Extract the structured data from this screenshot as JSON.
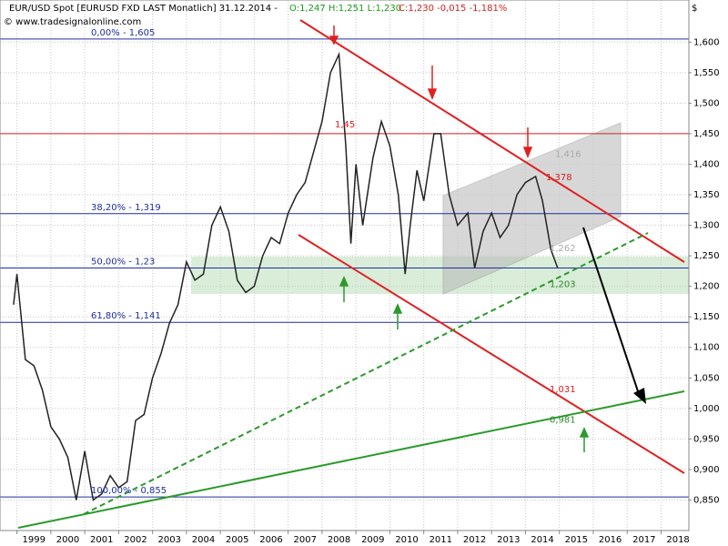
{
  "chart_data": {
    "type": "line",
    "title": "EUR/USD Spot [EURUSD FXD LAST Monatlich] 31.12.2014 -",
    "title_ohl": "O:1,247 H:1,251 L:1,230",
    "title_change": "C:1,230 -0,015 -1,181%",
    "source": "© www.tradesignalonline.com",
    "y_unit": "$",
    "x": [
      1998.9,
      1999.0,
      1999.25,
      1999.5,
      1999.75,
      2000.0,
      2000.25,
      2000.5,
      2000.75,
      2001.0,
      2001.25,
      2001.5,
      2001.75,
      2002.0,
      2002.25,
      2002.5,
      2002.75,
      2003.0,
      2003.25,
      2003.5,
      2003.75,
      2004.0,
      2004.25,
      2004.5,
      2004.75,
      2005.0,
      2005.25,
      2005.5,
      2005.75,
      2006.0,
      2006.25,
      2006.5,
      2006.75,
      2007.0,
      2007.25,
      2007.5,
      2007.75,
      2008.0,
      2008.25,
      2008.5,
      2008.7,
      2008.85,
      2009.0,
      2009.2,
      2009.5,
      2009.75,
      2010.0,
      2010.25,
      2010.45,
      2010.6,
      2010.8,
      2011.0,
      2011.3,
      2011.5,
      2011.75,
      2012.0,
      2012.3,
      2012.5,
      2012.75,
      2013.0,
      2013.25,
      2013.5,
      2013.75,
      2014.0,
      2014.3,
      2014.5,
      2014.75,
      2014.95
    ],
    "series": [
      {
        "name": "EUR/USD",
        "color": "#222222",
        "values": [
          1.17,
          1.22,
          1.08,
          1.07,
          1.03,
          0.97,
          0.95,
          0.92,
          0.85,
          0.93,
          0.85,
          0.86,
          0.89,
          0.87,
          0.88,
          0.98,
          0.99,
          1.05,
          1.09,
          1.14,
          1.17,
          1.24,
          1.21,
          1.22,
          1.3,
          1.33,
          1.29,
          1.21,
          1.19,
          1.2,
          1.25,
          1.28,
          1.27,
          1.32,
          1.35,
          1.37,
          1.42,
          1.47,
          1.55,
          1.58,
          1.43,
          1.27,
          1.4,
          1.3,
          1.41,
          1.47,
          1.43,
          1.35,
          1.22,
          1.3,
          1.39,
          1.34,
          1.45,
          1.45,
          1.35,
          1.3,
          1.32,
          1.23,
          1.29,
          1.32,
          1.28,
          1.3,
          1.35,
          1.37,
          1.38,
          1.34,
          1.26,
          1.23
        ]
      }
    ],
    "xlim": [
      1998.5,
      2018.82
    ],
    "xticks": [
      1999,
      2000,
      2001,
      2002,
      2003,
      2004,
      2005,
      2006,
      2007,
      2008,
      2009,
      2010,
      2011,
      2012,
      2013,
      2014,
      2015,
      2016,
      2017,
      2018
    ],
    "ylim": [
      0.8,
      1.669
    ],
    "yticks": [
      {
        "value": 0.85,
        "label": "0,850"
      },
      {
        "value": 0.9,
        "label": "0,900"
      },
      {
        "value": 0.95,
        "label": "0,950"
      },
      {
        "value": 1.0,
        "label": "1,000"
      },
      {
        "value": 1.05,
        "label": "1,050"
      },
      {
        "value": 1.1,
        "label": "1,100"
      },
      {
        "value": 1.15,
        "label": "1,150"
      },
      {
        "value": 1.2,
        "label": "1,200"
      },
      {
        "value": 1.25,
        "label": "1,250"
      },
      {
        "value": 1.3,
        "label": "1,300"
      },
      {
        "value": 1.35,
        "label": "1,350"
      },
      {
        "value": 1.4,
        "label": "1,400"
      },
      {
        "value": 1.45,
        "label": "1,450"
      },
      {
        "value": 1.5,
        "label": "1,500"
      },
      {
        "value": 1.55,
        "label": "1,550"
      },
      {
        "value": 1.6,
        "label": "1,600"
      }
    ],
    "grid": true,
    "fib_levels": [
      {
        "value": 1.605,
        "label": "0,00% - 1,605"
      },
      {
        "value": 1.319,
        "label": "38,20% - 1,319"
      },
      {
        "value": 1.23,
        "label": "50,00% - 1,23"
      },
      {
        "value": 1.141,
        "label": "61,80% - 1,141"
      },
      {
        "value": 0.855,
        "label": "100,00% - 0,855"
      }
    ],
    "fib_color": "#1f2f9f",
    "resistance": {
      "value": 1.45,
      "label": "1,45",
      "color": "#d62020"
    },
    "annotations": [
      {
        "value": 1.416,
        "label": "1,416",
        "color": "#aaaaaa"
      },
      {
        "value": 1.378,
        "label": "1,378",
        "color": "#d62020"
      },
      {
        "value": 1.262,
        "label": "1,262",
        "color": "#aaaaaa"
      },
      {
        "value": 1.203,
        "label": "1,203",
        "color": "#2a8a2a"
      },
      {
        "value": 1.031,
        "label": "1,031",
        "color": "#d62020"
      },
      {
        "value": 0.981,
        "label": "0,981",
        "color": "#2a8a2a"
      }
    ]
  }
}
